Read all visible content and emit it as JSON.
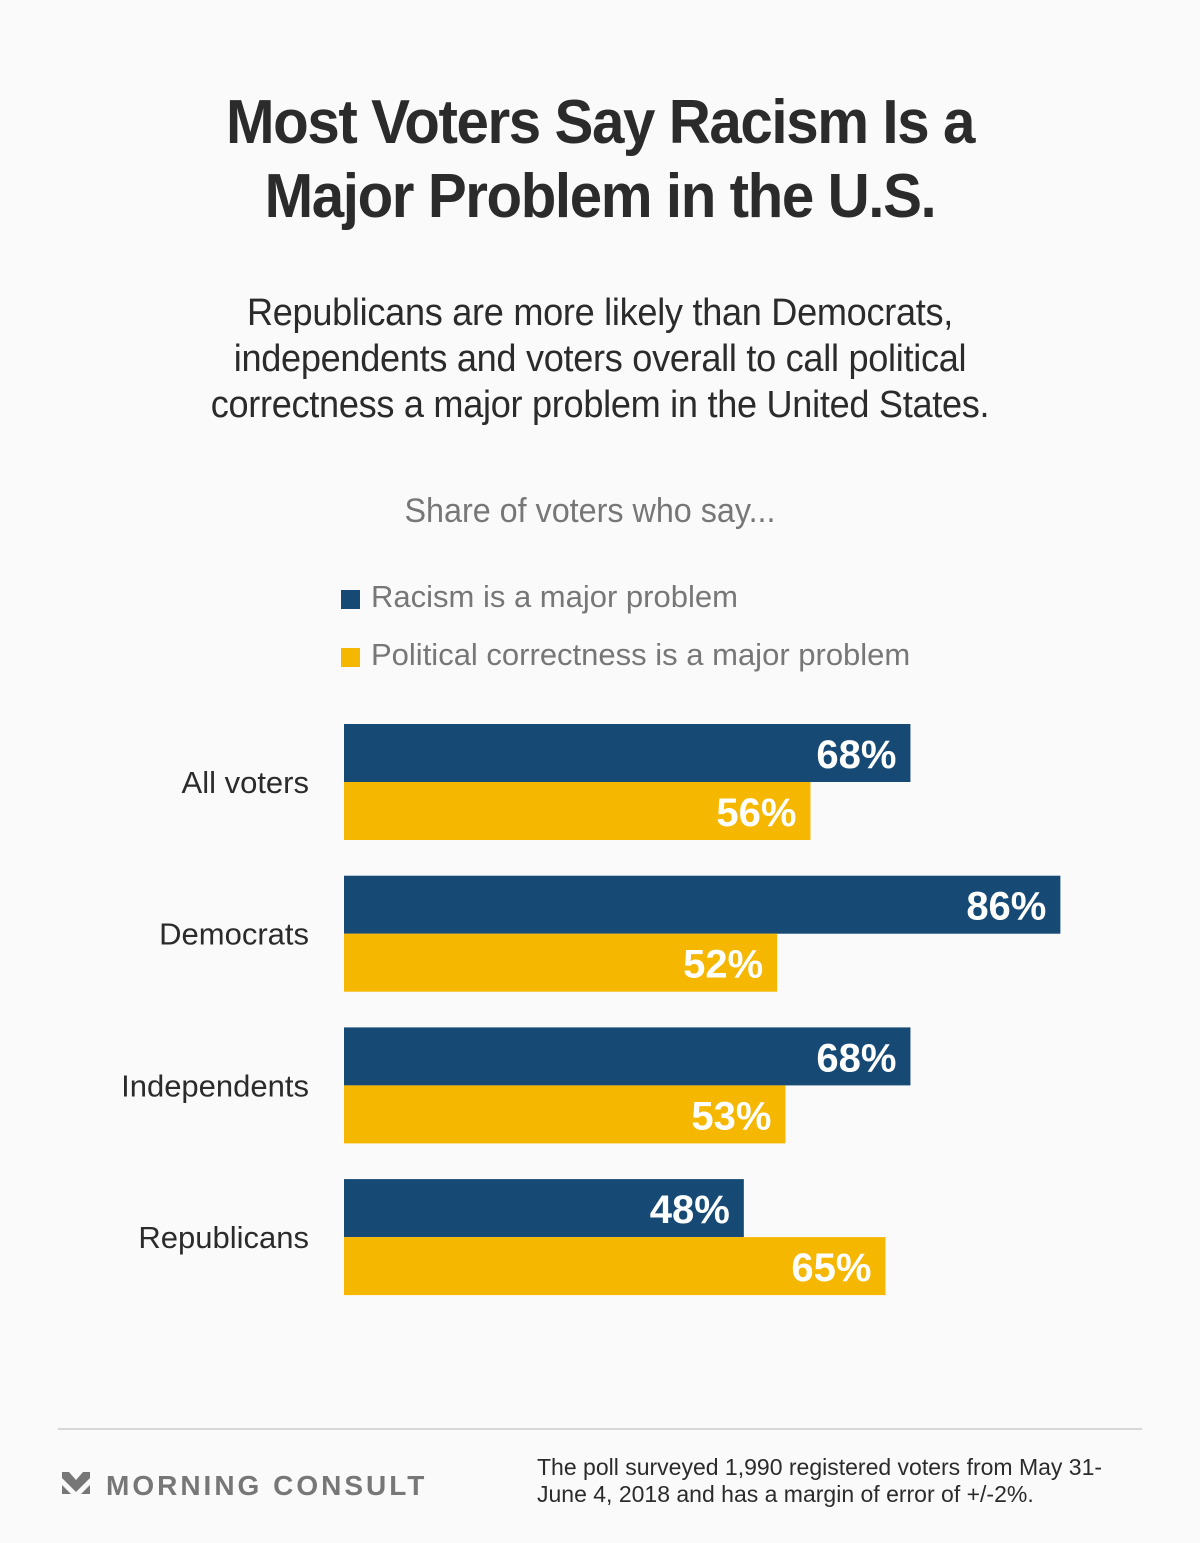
{
  "header": {
    "title_line1": "Most Voters Say Racism Is a",
    "title_line2": "Major Problem in the U.S.",
    "subtitle_line1": "Republicans are more likely than Democrats,",
    "subtitle_line2": "independents and voters overall to call political",
    "subtitle_line3": "correctness a major problem in the United States."
  },
  "chart_data": {
    "type": "bar",
    "orientation": "horizontal",
    "title": "Share of voters who say...",
    "xlabel": "",
    "ylabel": "",
    "xlim": [
      0,
      100
    ],
    "grid": false,
    "legend_position": "top",
    "categories": [
      "All voters",
      "Democrats",
      "Independents",
      "Republicans"
    ],
    "series": [
      {
        "name": "Racism is a major problem",
        "color": "#164a75",
        "values": [
          68,
          86,
          68,
          48
        ]
      },
      {
        "name": "Political correctness is a major problem",
        "color": "#f5b700",
        "values": [
          56,
          52,
          53,
          65
        ]
      }
    ],
    "value_suffix": "%"
  },
  "footer": {
    "brand_icon": "morning-consult-chevron-logo",
    "brand_name": "MORNING CONSULT",
    "note_line1": "The poll surveyed 1,990 registered voters from May 31-",
    "note_line2": "June 4, 2018 and has a margin of error of +/-2%."
  }
}
